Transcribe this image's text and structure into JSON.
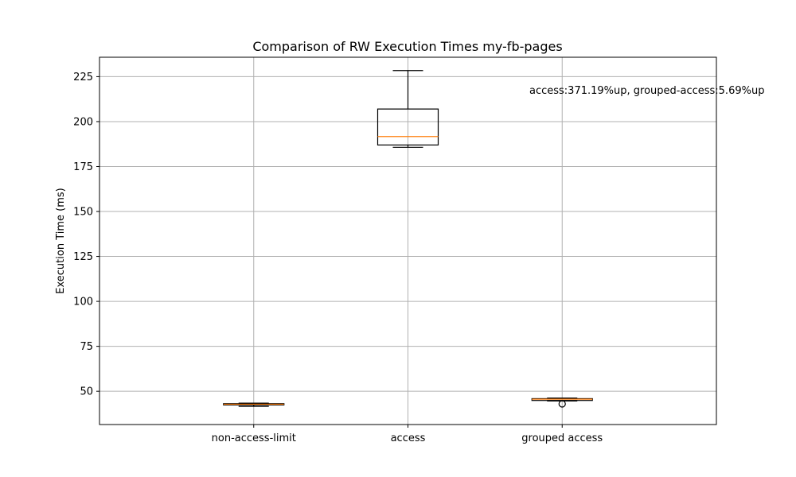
{
  "chart_data": {
    "type": "boxplot",
    "title": "Comparison of RW Execution Times my-fb-pages",
    "xlabel": "",
    "ylabel": "Execution Time (ms)",
    "ylim": [
      31.5,
      235.8
    ],
    "yticks": [
      50,
      75,
      100,
      125,
      150,
      175,
      200,
      225
    ],
    "grid": true,
    "categories": [
      "non-access-limit",
      "access",
      "grouped access"
    ],
    "boxes": [
      {
        "category": "non-access-limit",
        "whisker_low": 41.6,
        "q1": 42.4,
        "median": 42.8,
        "q3": 43.1,
        "whisker_high": 43.4,
        "outliers": []
      },
      {
        "category": "access",
        "whisker_low": 185.7,
        "q1": 187.0,
        "median": 191.7,
        "q3": 207.0,
        "whisker_high": 228.4,
        "outliers": []
      },
      {
        "category": "grouped access",
        "whisker_low": 44.6,
        "q1": 44.9,
        "median": 45.6,
        "q3": 45.9,
        "whisker_high": 46.2,
        "outliers": [
          43.0
        ]
      }
    ],
    "annotation": "access:371.19%up, grouped-access:5.69%up",
    "colors": {
      "box": "#000000",
      "median": "#ff7f0e",
      "grid": "#b0b0b0"
    }
  }
}
